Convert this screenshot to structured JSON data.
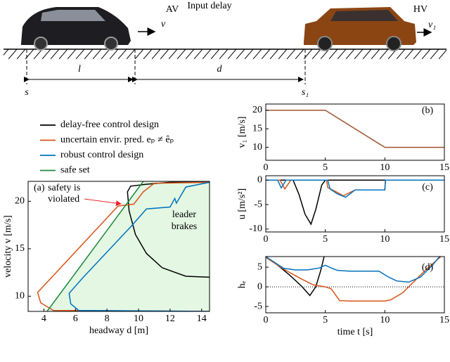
{
  "diagram": {
    "av_label": "AV",
    "delay_label": "Input delay",
    "hv_label": "HV",
    "v_label": "v",
    "v1_label": "v₁",
    "s_label": "s",
    "l_label": "l",
    "d_label": "d",
    "s1_label": "s₁"
  },
  "chart_data": [
    {
      "type": "line",
      "panel_label": "(a)",
      "x_label": "headway d [m]",
      "y_label": "velocity v [m/s]",
      "xlim": [
        3,
        14.5
      ],
      "ylim": [
        8.4,
        22.1
      ],
      "xticks": [
        4,
        6,
        8,
        10,
        12,
        14
      ],
      "yticks": [
        10,
        15,
        20
      ],
      "annotations": [
        {
          "text": "safety is",
          "color": "#e8262b"
        },
        {
          "text": "violated",
          "color": "#e8262b"
        },
        {
          "text": "leader",
          "color": "#000000"
        },
        {
          "text": "brakes",
          "color": "#000000"
        }
      ],
      "series": [
        {
          "name": "delay-free control design",
          "color": "#000000",
          "x": [
            14.5,
            13,
            11.5,
            10.5,
            9.8,
            9.4,
            9.3,
            9.5,
            10.5,
            12,
            14.5
          ],
          "values": [
            12,
            12.1,
            13,
            14.5,
            16.5,
            19,
            21,
            21.6,
            21.8,
            22,
            22
          ]
        },
        {
          "name": "uncertain envir. pred. eₚ ≠ êₚ",
          "color": "#d95319",
          "x": [
            14.5,
            4.6,
            3.8,
            3.6,
            4.5,
            8.7,
            9.7,
            10.3,
            11,
            14.5
          ],
          "values": [
            8.4,
            8.5,
            9.3,
            10.4,
            12,
            19.5,
            19.7,
            21,
            21.9,
            22
          ]
        },
        {
          "name": "robust control design",
          "color": "#0072bd",
          "x": [
            14.5,
            6.2,
            5.7,
            5.6,
            6.5,
            9.5,
            10.5,
            12,
            12.3,
            12.4,
            13,
            14.5
          ],
          "values": [
            8.4,
            8.5,
            9.2,
            10.3,
            12,
            17.3,
            19.2,
            19.4,
            20.3,
            19.8,
            21.5,
            22
          ]
        },
        {
          "name": "safe set",
          "color": "#1a8a3a",
          "fill": "#e3f7e3",
          "x": [
            4.2,
            10.3
          ],
          "values": [
            8.4,
            22.1
          ]
        }
      ]
    },
    {
      "type": "line",
      "panel_label": "(b)",
      "y_label": "v₁ [m/s]",
      "xlim": [
        0,
        15
      ],
      "ylim": [
        6.5,
        21.7
      ],
      "xticks": [
        0,
        5,
        10,
        15
      ],
      "yticks": [
        10,
        15,
        20
      ],
      "series": [
        {
          "color": "#a0522d",
          "x": [
            0,
            5,
            10,
            15
          ],
          "values": [
            20,
            20,
            10,
            10
          ]
        }
      ]
    },
    {
      "type": "line",
      "panel_label": "(c)",
      "y_label": "u [m/s²]",
      "xlim": [
        0,
        15
      ],
      "ylim": [
        -10.6,
        0.9
      ],
      "xticks": [
        0,
        5,
        10,
        15
      ],
      "yticks": [
        -10,
        -5,
        0
      ],
      "series": [
        {
          "color": "#000000",
          "x": [
            0,
            2.3,
            2.8,
            3.3,
            3.8,
            4.2,
            4.7,
            5,
            15
          ],
          "values": [
            0,
            0,
            -3,
            -7,
            -9,
            -6,
            -1,
            0,
            0
          ]
        },
        {
          "color": "#d95319",
          "x": [
            0,
            1.2,
            1.6,
            2.1,
            5.1,
            5.2,
            6.0,
            6.5,
            7.5,
            10,
            10.05,
            15
          ],
          "values": [
            0,
            0,
            -1.8,
            0,
            0,
            -1.5,
            -2.5,
            -3.2,
            -2,
            -2,
            0,
            0
          ]
        },
        {
          "color": "#0072bd",
          "x": [
            0,
            1.0,
            1.3,
            1.7,
            5.2,
            5.4,
            6.0,
            6.7,
            7.5,
            10,
            10.05,
            15
          ],
          "values": [
            0,
            0,
            -1.6,
            0,
            0,
            -1.8,
            -2.8,
            -3.5,
            -2,
            -2,
            0,
            0
          ]
        }
      ]
    },
    {
      "type": "line",
      "panel_label": "(d)",
      "y_label": "hₑ",
      "x_label": "time t [s]",
      "zero_line": true,
      "xlim": [
        0,
        15
      ],
      "ylim": [
        -6.6,
        7.7
      ],
      "xticks": [
        0,
        5,
        10,
        15
      ],
      "yticks": [
        -5,
        0,
        5
      ],
      "series": [
        {
          "color": "#000000",
          "x": [
            0,
            1,
            2,
            3,
            3.7,
            4.2,
            4.6,
            4.9
          ],
          "values": [
            7.7,
            5.5,
            3,
            0.2,
            -2.2,
            0,
            4,
            7.7
          ]
        },
        {
          "color": "#d95319",
          "x": [
            0,
            1.5,
            3,
            4,
            5,
            5.5,
            6.2,
            7,
            10,
            10.5,
            11.5,
            12.5,
            13.5,
            14.7
          ],
          "values": [
            7.5,
            4.5,
            2,
            0.5,
            0,
            -0.5,
            -3.5,
            -3.6,
            -3.6,
            -3.3,
            -1.5,
            1.5,
            4.5,
            7.7
          ]
        },
        {
          "color": "#0072bd",
          "x": [
            0,
            1.5,
            2.5,
            3.5,
            4.5,
            5,
            5.5,
            6,
            7,
            9.5,
            10.3,
            11,
            12,
            13,
            14,
            14.6
          ],
          "values": [
            7.7,
            4.7,
            4.3,
            4.3,
            4.8,
            5.5,
            4.8,
            4.2,
            4,
            4,
            2.5,
            1.5,
            1.2,
            2.5,
            5.5,
            7.7
          ]
        }
      ]
    }
  ]
}
